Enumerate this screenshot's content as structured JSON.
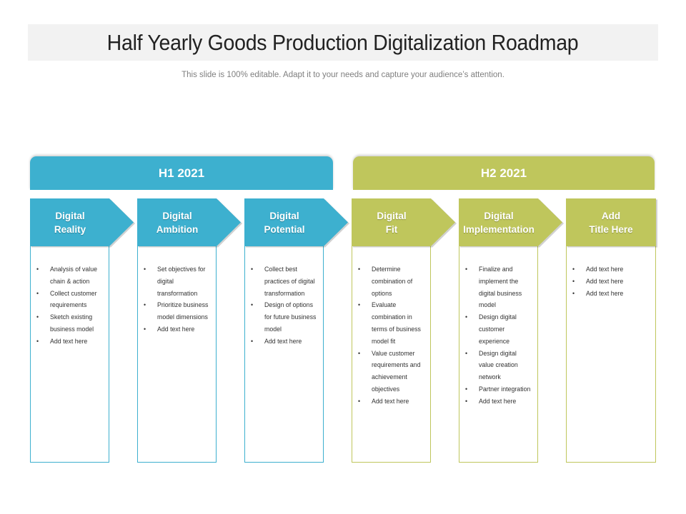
{
  "title": "Half Yearly Goods Production Digitalization Roadmap",
  "subtitle": "This slide is 100% editable. Adapt it to your needs and capture your audience’s attention.",
  "colors": {
    "h1": "#3db0cf",
    "h2": "#bfc65c",
    "title_bg": "#f2f2f2"
  },
  "halves": [
    {
      "label": "H1 2021"
    },
    {
      "label": "H2 2021"
    }
  ],
  "stages": [
    {
      "line1": "Digital",
      "line2": "Reality",
      "half": "H1 2021",
      "bullets": [
        "Analysis of value chain & action",
        "Collect customer requirements",
        "Sketch existing business model",
        "Add text here"
      ]
    },
    {
      "line1": "Digital",
      "line2": "Ambition",
      "half": "H1 2021",
      "bullets": [
        "Set objectives for digital transformation",
        "Prioritize business model dimensions",
        "Add text here"
      ]
    },
    {
      "line1": "Digital",
      "line2": "Potential",
      "half": "H1 2021",
      "bullets": [
        "Collect best practices of digital transformation",
        "Design of options for future business model",
        "Add text here"
      ]
    },
    {
      "line1": "Digital",
      "line2": "Fit",
      "half": "H2 2021",
      "bullets": [
        "Determine combination of options",
        "Evaluate combination in terms of business model fit",
        "Value customer requirements and achievement objectives",
        "Add text here"
      ]
    },
    {
      "line1": "Digital",
      "line2": "Implementation",
      "half": "H2 2021",
      "bullets": [
        "Finalize and implement the digital business model",
        "Design digital customer experience",
        "Design digital value creation network",
        "Partner integration",
        "Add text here"
      ]
    },
    {
      "line1": "Add",
      "line2": "Title Here",
      "half": "H2 2021",
      "bullets": [
        "Add text here",
        "Add text here",
        "Add text here"
      ]
    }
  ]
}
